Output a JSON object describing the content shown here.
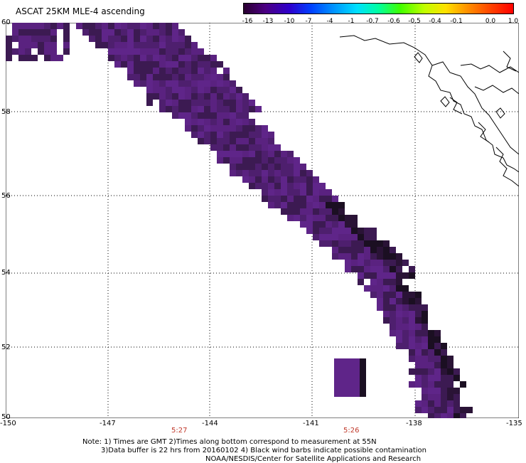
{
  "title": "ASCAT 25KM MLE-4 ascending",
  "legend": {
    "labels": [
      "-16",
      "-13",
      "-10",
      "-7",
      "-4",
      "-1",
      "-0.7",
      "-0.6",
      "-0.5",
      "-0.4",
      "-0.1",
      "0.0",
      "1.0"
    ],
    "colors": [
      "#2a0030",
      "#4b0082",
      "#2e00cc",
      "#0040ff",
      "#0090ff",
      "#00e0ff",
      "#00ffa0",
      "#40ff00",
      "#c0ff00",
      "#ffe000",
      "#ff9000",
      "#ff4000",
      "#ff0000"
    ]
  },
  "map": {
    "lat_labels": [
      "60",
      "58",
      "56",
      "54",
      "52",
      "50"
    ],
    "lon_labels": [
      "-150",
      "-147",
      "-144",
      "-141",
      "-138",
      "-135"
    ],
    "time_labels": [
      "5:27",
      "5:26"
    ],
    "swath_colors": [
      "#1b0f22",
      "#2a1336",
      "#3c1a52",
      "#4e1f6e",
      "#5a2280",
      "#5f2589"
    ],
    "coast_color": "#000000"
  },
  "notes": {
    "line1": "Note: 1) Times are GMT 2)Times along bottom correspond to measurement at 55N",
    "line2": "3)Data buffer is 22 hrs from 20160102 4) Black wind barbs indicate possible contamination",
    "line3": "NOAA/NESDIS/Center for Satellite Applications and Research"
  }
}
